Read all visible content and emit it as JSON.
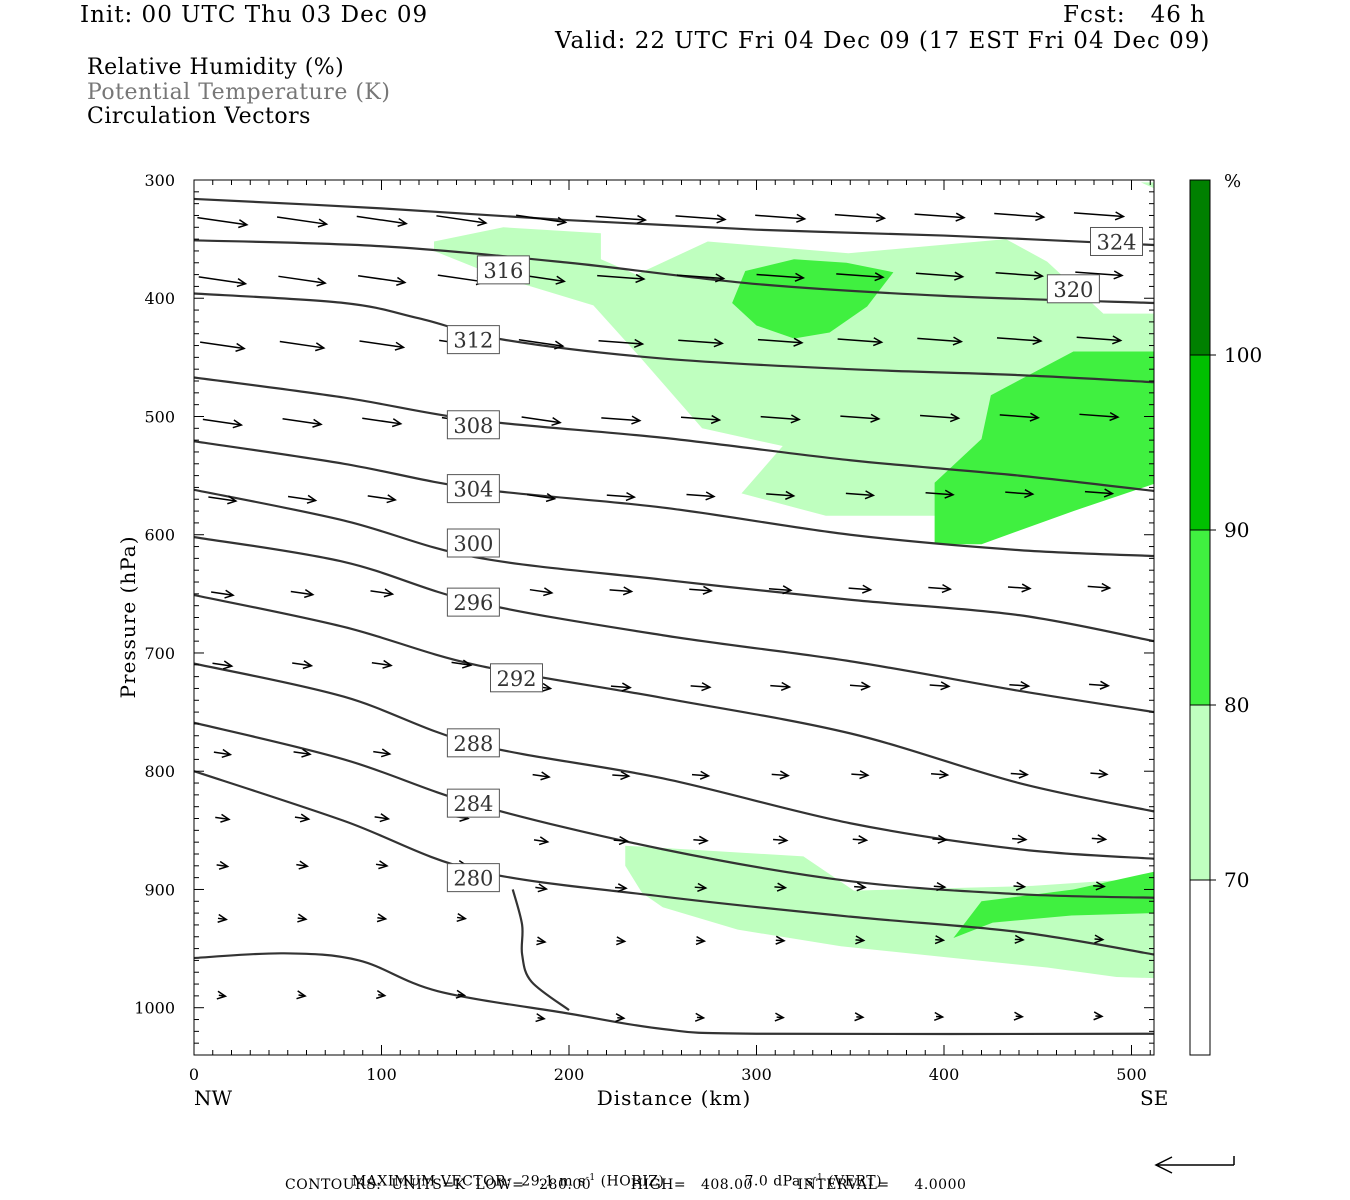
{
  "header": {
    "init": "Init: 00 UTC Thu 03 Dec 09",
    "fcst": "Fcst:   46 h",
    "valid": "Valid: 22 UTC Fri 04 Dec 09 (17 EST Fri 04 Dec 09)"
  },
  "legend": {
    "rh": "Relative Humidity (%)",
    "theta": "Potential Temperature (K)",
    "vectors": "Circulation Vectors"
  },
  "footer": {
    "max_vector_label": "MAXIMUM VECTOR:",
    "horiz_value": "29.1",
    "horiz_unit": "m s",
    "horiz_tag": "(HORIZ)",
    "vert_value": "7.0",
    "vert_unit": "dPa s",
    "vert_tag": "(VERT)",
    "contours": "CONTOURS:  UNITS=K  LOW=   280.00        HIGH=   408.00         INTERVAL=     4.0000"
  },
  "chart_data": {
    "type": "cross-section",
    "x_axis": {
      "label": "Distance (km)",
      "range": [
        0,
        512
      ],
      "ticks": [
        0,
        100,
        200,
        300,
        400,
        500
      ],
      "left_end_label": "NW",
      "right_end_label": "SE"
    },
    "y_axis": {
      "label": "Pressure (hPa)",
      "range": [
        300,
        1040
      ],
      "inverted": true,
      "ticks": [
        300,
        400,
        500,
        600,
        700,
        800,
        900,
        1000
      ]
    },
    "colorbar": {
      "unit_label": "%",
      "levels": [
        70,
        80,
        90,
        100
      ],
      "colors": [
        "#ffffff",
        "#bfffbf",
        "#40f040",
        "#00c000",
        "#008000"
      ]
    },
    "rh_regions": [
      {
        "level": "70-80",
        "color": "#bfffbf",
        "polygon": [
          [
            128,
            352
          ],
          [
            165,
            340
          ],
          [
            217,
            345
          ],
          [
            217,
            367
          ],
          [
            236,
            380
          ],
          [
            274,
            352
          ],
          [
            349,
            362
          ],
          [
            433,
            350
          ],
          [
            455,
            369
          ],
          [
            485,
            413
          ],
          [
            512,
            413
          ],
          [
            512,
            555
          ],
          [
            469,
            570
          ],
          [
            400,
            584
          ],
          [
            337,
            584
          ],
          [
            292,
            565
          ],
          [
            314,
            525
          ],
          [
            271,
            510
          ],
          [
            238,
            450
          ],
          [
            213,
            406
          ],
          [
            161,
            381
          ],
          [
            128,
            360
          ]
        ]
      },
      {
        "level": "70-80",
        "color": "#bfffbf",
        "polygon": [
          [
            512,
            302
          ],
          [
            505,
            302
          ],
          [
            512,
            307
          ]
        ]
      },
      {
        "level": "70-80",
        "color": "#bfffbf",
        "polygon": [
          [
            230,
            863
          ],
          [
            325,
            872
          ],
          [
            352,
            901
          ],
          [
            447,
            897
          ],
          [
            512,
            890
          ],
          [
            512,
            975
          ],
          [
            492,
            974
          ],
          [
            455,
            966
          ],
          [
            405,
            958
          ],
          [
            345,
            948
          ],
          [
            290,
            934
          ],
          [
            250,
            915
          ],
          [
            239,
            903
          ],
          [
            230,
            880
          ]
        ]
      },
      {
        "level": "80-90",
        "color": "#40f040",
        "polygon": [
          [
            287,
            404
          ],
          [
            294,
            377
          ],
          [
            320,
            367
          ],
          [
            348,
            370
          ],
          [
            373,
            378
          ],
          [
            359,
            407
          ],
          [
            339,
            429
          ],
          [
            320,
            434
          ],
          [
            300,
            423
          ]
        ]
      },
      {
        "level": "80-90",
        "color": "#40f040",
        "polygon": [
          [
            512,
            445
          ],
          [
            469,
            445
          ],
          [
            425,
            482
          ],
          [
            420,
            519
          ],
          [
            395,
            556
          ],
          [
            395,
            608
          ],
          [
            420,
            608
          ],
          [
            469,
            580
          ],
          [
            512,
            557
          ]
        ]
      },
      {
        "level": "80-90",
        "color": "#40f040",
        "polygon": [
          [
            512,
            920
          ],
          [
            468,
            922
          ],
          [
            426,
            928
          ],
          [
            405,
            941
          ],
          [
            420,
            910
          ],
          [
            469,
            900
          ],
          [
            512,
            885
          ]
        ]
      }
    ],
    "theta_contours": [
      {
        "value": 324,
        "label_at": [
          492,
          352
        ],
        "points": [
          [
            0,
            316
          ],
          [
            100,
            324
          ],
          [
            200,
            334
          ],
          [
            300,
            342
          ],
          [
            400,
            347
          ],
          [
            512,
            355
          ]
        ]
      },
      {
        "value": 320,
        "label_at": [
          469,
          392
        ],
        "points": [
          [
            0,
            351
          ],
          [
            100,
            356
          ],
          [
            200,
            370
          ],
          [
            300,
            388
          ],
          [
            400,
            398
          ],
          [
            512,
            404
          ]
        ]
      },
      {
        "value": 316,
        "label_at": [
          165,
          376
        ],
        "points": [
          [
            0,
            396
          ],
          [
            80,
            404
          ],
          [
            120,
            417
          ],
          [
            165,
            435
          ],
          [
            250,
            451
          ],
          [
            350,
            460
          ],
          [
            440,
            465
          ],
          [
            512,
            471
          ]
        ]
      },
      {
        "value": 312,
        "label_at": [
          149,
          435
        ],
        "points": [
          [
            0,
            467
          ],
          [
            80,
            484
          ],
          [
            150,
            503
          ],
          [
            250,
            518
          ],
          [
            350,
            537
          ],
          [
            440,
            550
          ],
          [
            512,
            563
          ]
        ]
      },
      {
        "value": 308,
        "label_at": [
          149,
          507
        ],
        "points": [
          [
            0,
            521
          ],
          [
            80,
            540
          ],
          [
            150,
            561
          ],
          [
            250,
            577
          ],
          [
            350,
            600
          ],
          [
            440,
            613
          ],
          [
            512,
            618
          ]
        ]
      },
      {
        "value": 304,
        "label_at": [
          149,
          561
        ],
        "points": [
          [
            0,
            562
          ],
          [
            80,
            588
          ],
          [
            150,
            619
          ],
          [
            250,
            638
          ],
          [
            350,
            655
          ],
          [
            440,
            668
          ],
          [
            512,
            690
          ]
        ]
      },
      {
        "value": 300,
        "label_at": [
          149,
          607
        ],
        "points": [
          [
            0,
            602
          ],
          [
            80,
            623
          ],
          [
            150,
            657
          ],
          [
            250,
            685
          ],
          [
            350,
            707
          ],
          [
            440,
            732
          ],
          [
            512,
            750
          ]
        ]
      },
      {
        "value": 296,
        "label_at": [
          149,
          657
        ],
        "points": [
          [
            0,
            651
          ],
          [
            80,
            678
          ],
          [
            150,
            710
          ],
          [
            250,
            738
          ],
          [
            350,
            768
          ],
          [
            440,
            810
          ],
          [
            512,
            834
          ]
        ]
      },
      {
        "value": 292,
        "label_at": [
          172,
          721
        ],
        "points": [
          [
            0,
            709
          ],
          [
            80,
            737
          ],
          [
            150,
            777
          ],
          [
            250,
            806
          ],
          [
            350,
            844
          ],
          [
            440,
            866
          ],
          [
            512,
            874
          ]
        ]
      },
      {
        "value": 288,
        "label_at": [
          149,
          776
        ],
        "points": [
          [
            0,
            759
          ],
          [
            80,
            790
          ],
          [
            150,
            828
          ],
          [
            250,
            866
          ],
          [
            350,
            893
          ],
          [
            440,
            904
          ],
          [
            512,
            907
          ]
        ]
      },
      {
        "value": 284,
        "label_at": [
          149,
          827
        ],
        "points": [
          [
            0,
            800
          ],
          [
            80,
            842
          ],
          [
            150,
            884
          ],
          [
            250,
            906
          ],
          [
            350,
            923
          ],
          [
            440,
            936
          ],
          [
            512,
            955
          ]
        ]
      },
      {
        "value": 280,
        "label_at": [
          149,
          890
        ],
        "points": [
          [
            0,
            958
          ],
          [
            48,
            954
          ],
          [
            88,
            960
          ],
          [
            130,
            986
          ],
          [
            200,
            1005
          ],
          [
            250,
            1018
          ],
          [
            300,
            1022
          ],
          [
            512,
            1022
          ]
        ]
      },
      {
        "value": 280,
        "label_at": [
          149,
          890
        ],
        "points": [
          [
            170,
            900
          ],
          [
            175,
            930
          ],
          [
            175,
            955
          ],
          [
            180,
            978
          ],
          [
            200,
            1002
          ]
        ]
      }
    ]
  }
}
